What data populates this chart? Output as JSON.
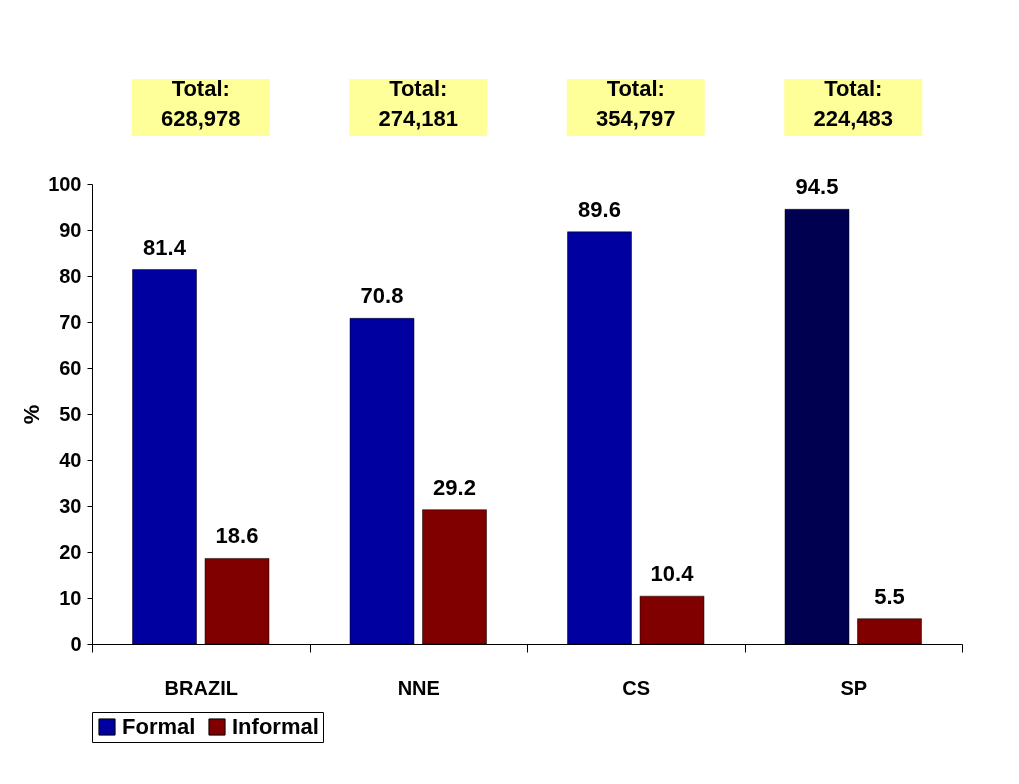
{
  "chart_data": {
    "type": "bar",
    "categories": [
      "BRAZIL",
      "NNE",
      "CS",
      "SP"
    ],
    "series": [
      {
        "name": "Formal",
        "color": "#0000a0",
        "colors": [
          "#0000a0",
          "#0000a0",
          "#0000a0",
          "#000050"
        ],
        "values": [
          81.4,
          70.8,
          89.6,
          94.5
        ]
      },
      {
        "name": "Informal",
        "color": "#800000",
        "values": [
          18.6,
          29.2,
          10.4,
          5.5
        ]
      }
    ],
    "ylabel": "%",
    "ylim": [
      0,
      100
    ],
    "yticks": [
      0,
      10,
      20,
      30,
      40,
      50,
      60,
      70,
      80,
      90,
      100
    ],
    "data_labels": true,
    "legend": "bottom",
    "grid": false,
    "annotations": [
      "Total: 628,978",
      "Total: 274,181",
      "Total: 354,797",
      "Total: 224,483"
    ]
  }
}
